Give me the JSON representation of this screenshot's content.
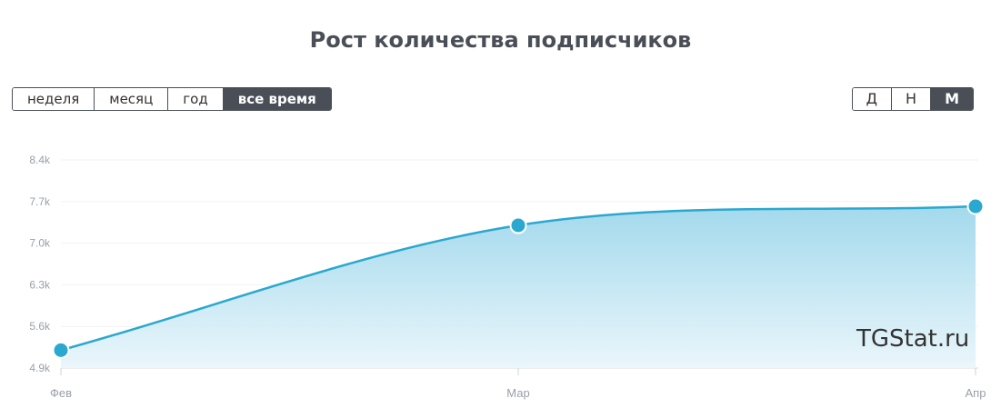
{
  "header": {
    "title": "Рост количества подписчиков"
  },
  "range_buttons": [
    {
      "label": "неделя",
      "active": false
    },
    {
      "label": "месяц",
      "active": false
    },
    {
      "label": "год",
      "active": false
    },
    {
      "label": "все время",
      "active": true
    }
  ],
  "granularity_buttons": [
    {
      "label": "Д",
      "active": false
    },
    {
      "label": "Н",
      "active": false
    },
    {
      "label": "М",
      "active": true
    }
  ],
  "watermark": "TGStat.ru",
  "colors": {
    "line": "#2aa8d0",
    "point": "#2aa8d0",
    "fill_top": "#a3d9ec",
    "fill_bottom": "#eaf6fb",
    "active_button": "#4a4f57"
  },
  "chart_data": {
    "type": "area",
    "x": [
      "Фев",
      "Мар",
      "Апр"
    ],
    "series": [
      {
        "values": [
          5200,
          7300,
          7620
        ]
      }
    ],
    "y_ticks": [
      "4.9k",
      "5.6k",
      "6.3k",
      "7.0k",
      "7.7k",
      "8.4k"
    ],
    "y_tick_values": [
      4900,
      5600,
      6300,
      7000,
      7700,
      8400
    ],
    "ylim": [
      4900,
      8400
    ],
    "grid": true,
    "legend": "none"
  }
}
